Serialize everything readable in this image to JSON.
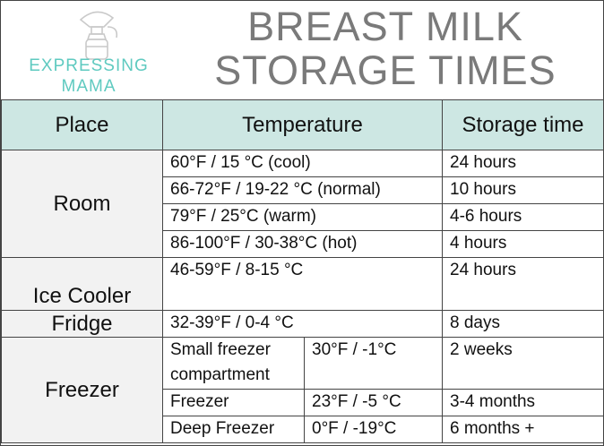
{
  "logo": {
    "icon": "breast-pump-icon",
    "line1": "EXPRESSING",
    "line2": "MAMA",
    "color": "#5fcac0"
  },
  "title": {
    "line1": "BREAST MILK",
    "line2": "STORAGE TIMES"
  },
  "colors": {
    "header_bg": "#cde7e3",
    "place_bg": "#f2f2f2",
    "title": "#7a7a7a"
  },
  "table": {
    "headers": {
      "place": "Place",
      "temperature": "Temperature",
      "storage": "Storage time"
    },
    "room": {
      "place": "Room",
      "rows": [
        {
          "temp": "60°F / 15 °C (cool)",
          "time": "24 hours"
        },
        {
          "temp": "66-72°F / 19-22 °C (normal)",
          "time": "10 hours"
        },
        {
          "temp": "79°F / 25°C (warm)",
          "time": "4-6 hours"
        },
        {
          "temp": "86-100°F / 30-38°C (hot)",
          "time": "4 hours"
        }
      ]
    },
    "ice_cooler": {
      "place": "Ice Cooler",
      "temp": "46-59°F / 8-15 °C",
      "time": "24 hours"
    },
    "fridge": {
      "place": "Fridge",
      "temp": "32-39°F / 0-4 °C",
      "time": "8 days"
    },
    "freezer": {
      "place": "Freezer",
      "rows": [
        {
          "type": "Small freezer compartment",
          "temp": "30°F / -1°C",
          "time": "2 weeks"
        },
        {
          "type": "Freezer",
          "temp": "23°F / -5 °C",
          "time": "3-4 months"
        },
        {
          "type": "Deep Freezer",
          "temp": "0°F / -19°C",
          "time": "6 months +"
        }
      ]
    }
  }
}
